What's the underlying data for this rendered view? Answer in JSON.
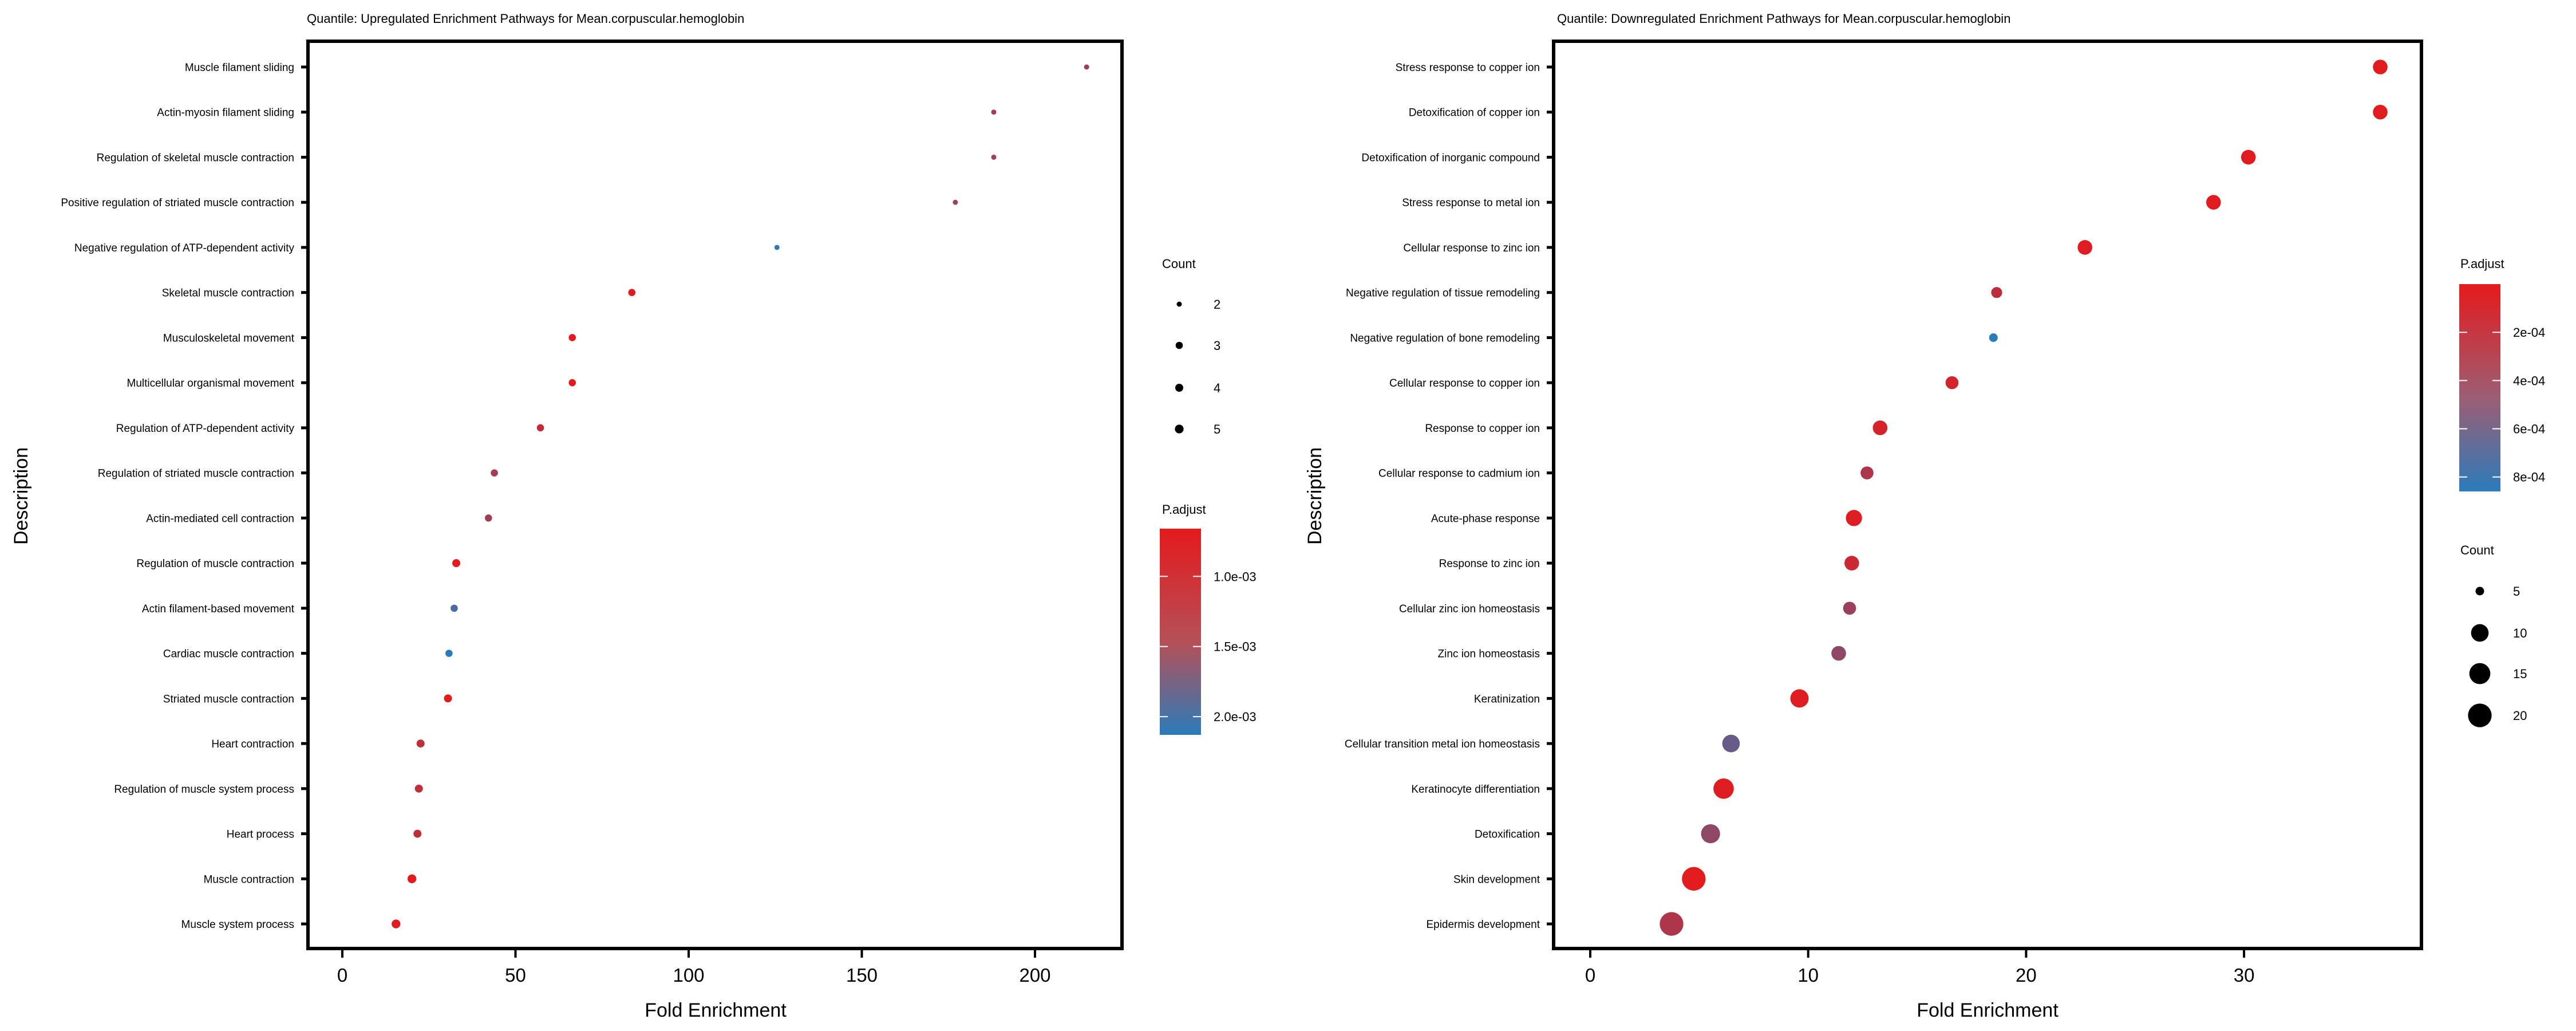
{
  "chart_data": [
    {
      "type": "scatter",
      "title": "Quantile: Upregulated Enrichment Pathways for Mean.corpuscular.hemoglobin",
      "xlabel": "Fold Enrichment",
      "ylabel": "Description",
      "xlim": [
        -10,
        226
      ],
      "xticks": [
        0,
        50,
        100,
        150,
        200
      ],
      "xtick_labels": [
        "0",
        "50",
        "100",
        "150",
        "200"
      ],
      "grid": false,
      "color_scale": {
        "title": "P.adjust",
        "low_color": "#e41a1c",
        "high_color": "#2b7bba",
        "range": [
          0.00066,
          0.00213
        ],
        "ticks": [
          0.001,
          0.0015,
          0.002
        ],
        "tick_labels": [
          "1.0e-03",
          "1.5e-03",
          "2.0e-03"
        ]
      },
      "size_scale": {
        "title": "Count",
        "breaks": [
          2,
          3,
          4,
          5
        ],
        "labels": [
          "2",
          "3",
          "4",
          "5"
        ]
      },
      "legend_position": "right",
      "points": [
        {
          "label": "Muscle filament sliding",
          "x": 214.9,
          "count": 2,
          "p_adjust": 0.0012
        },
        {
          "label": "Actin-myosin filament sliding",
          "x": 188.1,
          "count": 2,
          "p_adjust": 0.0012
        },
        {
          "label": "Regulation of skeletal muscle contraction",
          "x": 188.1,
          "count": 2,
          "p_adjust": 0.0012
        },
        {
          "label": "Positive regulation of striated muscle contraction",
          "x": 177.0,
          "count": 2,
          "p_adjust": 0.00125
        },
        {
          "label": "Negative regulation of ATP-dependent activity",
          "x": 125.5,
          "count": 2,
          "p_adjust": 0.00213
        },
        {
          "label": "Skeletal muscle contraction",
          "x": 83.6,
          "count": 3,
          "p_adjust": 0.00068
        },
        {
          "label": "Musculoskeletal movement",
          "x": 66.4,
          "count": 3,
          "p_adjust": 0.00068
        },
        {
          "label": "Multicellular organismal movement",
          "x": 66.4,
          "count": 3,
          "p_adjust": 0.00068
        },
        {
          "label": "Regulation of ATP-dependent activity",
          "x": 57.2,
          "count": 3,
          "p_adjust": 0.0009
        },
        {
          "label": "Regulation of striated muscle contraction",
          "x": 43.9,
          "count": 3,
          "p_adjust": 0.0012
        },
        {
          "label": "Actin-mediated cell contraction",
          "x": 42.2,
          "count": 3,
          "p_adjust": 0.0012
        },
        {
          "label": "Regulation of muscle contraction",
          "x": 32.9,
          "count": 4,
          "p_adjust": 0.00068
        },
        {
          "label": "Actin filament-based movement",
          "x": 32.3,
          "count": 3,
          "p_adjust": 0.0019
        },
        {
          "label": "Cardiac muscle contraction",
          "x": 30.8,
          "count": 3,
          "p_adjust": 0.00213
        },
        {
          "label": "Striated muscle contraction",
          "x": 30.5,
          "count": 4,
          "p_adjust": 0.00068
        },
        {
          "label": "Heart contraction",
          "x": 22.6,
          "count": 4,
          "p_adjust": 0.00095
        },
        {
          "label": "Regulation of muscle system process",
          "x": 22.1,
          "count": 4,
          "p_adjust": 0.00095
        },
        {
          "label": "Heart process",
          "x": 21.7,
          "count": 4,
          "p_adjust": 0.00095
        },
        {
          "label": "Muscle contraction",
          "x": 20.1,
          "count": 5,
          "p_adjust": 0.00068
        },
        {
          "label": "Muscle system process",
          "x": 15.5,
          "count": 5,
          "p_adjust": 0.00068
        }
      ]
    },
    {
      "type": "scatter",
      "title": "Quantile: Downregulated Enrichment Pathways for Mean.corpuscular.hemoglobin",
      "xlabel": "Fold Enrichment",
      "ylabel": "Description",
      "xlim": [
        -1.7,
        38.2
      ],
      "xticks": [
        0,
        10,
        20,
        30
      ],
      "xtick_labels": [
        "0",
        "10",
        "20",
        "30"
      ],
      "grid": false,
      "color_scale": {
        "title": "P.adjust",
        "low_color": "#e41a1c",
        "high_color": "#2b7bba",
        "range": [
          0.0,
          0.00086
        ],
        "ticks": [
          0.0002,
          0.0004,
          0.0006,
          0.0008
        ],
        "tick_labels": [
          "2e-04",
          "4e-04",
          "6e-04",
          "8e-04"
        ]
      },
      "size_scale": {
        "title": "Count",
        "breaks": [
          5,
          10,
          15,
          20
        ],
        "labels": [
          "5",
          "10",
          "15",
          "20"
        ]
      },
      "legend_position": "right",
      "points": [
        {
          "label": "Stress response to copper ion",
          "x": 36.25,
          "count": 8,
          "p_adjust": 1e-05
        },
        {
          "label": "Detoxification of copper ion",
          "x": 36.25,
          "count": 8,
          "p_adjust": 1e-05
        },
        {
          "label": "Detoxification of inorganic compound",
          "x": 30.2,
          "count": 8,
          "p_adjust": 2e-05
        },
        {
          "label": "Stress response to metal ion",
          "x": 28.6,
          "count": 8,
          "p_adjust": 2e-05
        },
        {
          "label": "Cellular response to zinc ion",
          "x": 22.7,
          "count": 8,
          "p_adjust": 3e-05
        },
        {
          "label": "Negative regulation of tissue remodeling",
          "x": 18.65,
          "count": 6,
          "p_adjust": 0.00018
        },
        {
          "label": "Negative regulation of bone remodeling",
          "x": 18.5,
          "count": 5,
          "p_adjust": 0.00086
        },
        {
          "label": "Cellular response to copper ion",
          "x": 16.6,
          "count": 7,
          "p_adjust": 8e-05
        },
        {
          "label": "Response to copper ion",
          "x": 13.3,
          "count": 8,
          "p_adjust": 8e-05
        },
        {
          "label": "Cellular response to cadmium ion",
          "x": 12.7,
          "count": 7,
          "p_adjust": 0.00025
        },
        {
          "label": "Acute-phase response",
          "x": 12.1,
          "count": 9,
          "p_adjust": 3e-05
        },
        {
          "label": "Response to zinc ion",
          "x": 12.0,
          "count": 8,
          "p_adjust": 0.00012
        },
        {
          "label": "Cellular zinc ion homeostasis",
          "x": 11.9,
          "count": 7,
          "p_adjust": 0.00035
        },
        {
          "label": "Zinc ion homeostasis",
          "x": 11.4,
          "count": 8,
          "p_adjust": 0.0004
        },
        {
          "label": "Keratinization",
          "x": 9.6,
          "count": 11,
          "p_adjust": 3e-05
        },
        {
          "label": "Cellular transition metal ion homeostasis",
          "x": 6.46,
          "count": 10,
          "p_adjust": 0.00058
        },
        {
          "label": "Keratinocyte differentiation",
          "x": 6.12,
          "count": 14,
          "p_adjust": 3e-05
        },
        {
          "label": "Detoxification",
          "x": 5.52,
          "count": 12,
          "p_adjust": 0.0004
        },
        {
          "label": "Skin development",
          "x": 4.75,
          "count": 20,
          "p_adjust": 1e-05
        },
        {
          "label": "Epidermis development",
          "x": 3.73,
          "count": 20,
          "p_adjust": 0.00025
        }
      ]
    }
  ]
}
